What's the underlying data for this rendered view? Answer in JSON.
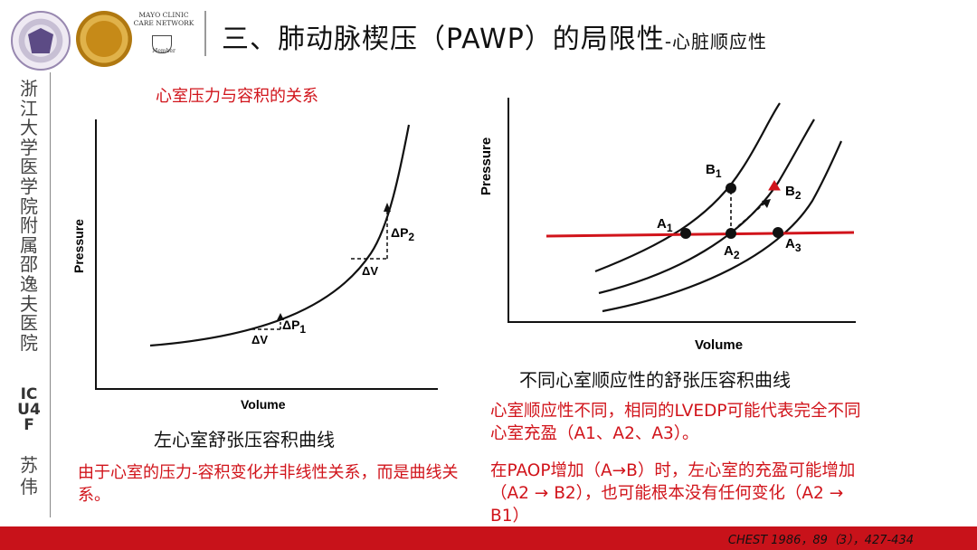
{
  "header": {
    "title_main": "三、肺动脉楔压（PAWP）的局限性",
    "title_sub": "-心脏顺应性",
    "mayo_line1": "MAYO CLINIC",
    "mayo_line2": "CARE NETWORK",
    "mayo_member": "Member"
  },
  "sidebar": {
    "hospital": "浙江大学医学院附属邵逸夫医院",
    "unit": "ICU4F",
    "name": "苏伟"
  },
  "left_figure": {
    "heading": "心室压力与容积的关系",
    "xlabel": "Volume",
    "ylabel": "Pressure",
    "dv_lower": "ΔV",
    "dp_lower": "ΔP",
    "dp_lower_sub": "1",
    "dv_upper": "ΔV",
    "dp_upper": "ΔP",
    "dp_upper_sub": "2",
    "caption": "左心室舒张压容积曲线",
    "note": "由于心室的压力-容积变化并非线性关系，而是曲线关系。"
  },
  "right_figure": {
    "xlabel": "Volume",
    "ylabel": "Pressure",
    "point_a1": "A",
    "point_a1_sub": "1",
    "point_a2": "A",
    "point_a2_sub": "2",
    "point_a3": "A",
    "point_a3_sub": "3",
    "point_b1": "B",
    "point_b1_sub": "1",
    "point_b2": "B",
    "point_b2_sub": "2",
    "caption": "不同心室顺应性的舒张压容积曲线",
    "note1": "心室顺应性不同，相同的LVEDP可能代表完全不同心室充盈（A1、A2、A3）。",
    "note2": "在PAOP增加（A→B）时，左心室的充盈可能增加（A2 → B2），也可能根本没有任何变化（A2 → B1）"
  },
  "footer": {
    "reference": "CHEST 1986，89（3），427-434"
  },
  "colors": {
    "accent_red": "#d1141b",
    "footer_red": "#c8121a"
  }
}
